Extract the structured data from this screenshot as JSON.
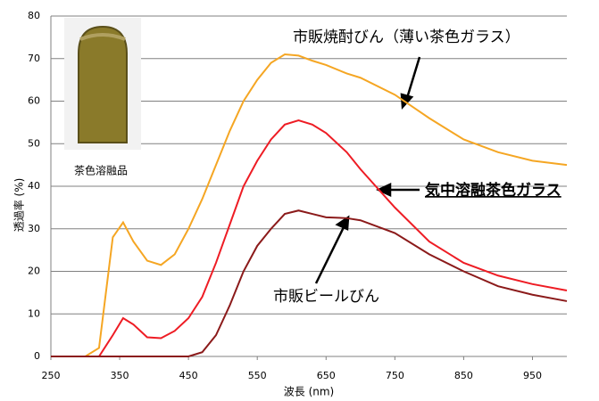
{
  "chart_data": {
    "type": "line",
    "x_label": "波長 (nm)",
    "y_label": "透過率 (%)",
    "x": [
      250,
      300,
      320,
      340,
      355,
      370,
      390,
      410,
      430,
      450,
      470,
      490,
      510,
      530,
      550,
      570,
      590,
      610,
      630,
      650,
      680,
      700,
      750,
      800,
      850,
      900,
      950,
      1000
    ],
    "series": [
      {
        "name": "市販焼酎びん（薄い茶色ガラス）",
        "color": "#f5a623",
        "values": [
          0,
          0,
          2,
          28,
          31.5,
          27,
          22.5,
          21.5,
          24,
          30,
          37,
          45,
          53,
          60,
          65,
          69,
          71,
          70.7,
          69.5,
          68.5,
          66.5,
          65.5,
          61.5,
          56,
          51,
          48,
          46,
          45
        ]
      },
      {
        "name": "気中溶融茶色ガラス",
        "color": "#ee1c24",
        "values": [
          0,
          0,
          0,
          5,
          9,
          7.5,
          4.5,
          4.3,
          6,
          9,
          14,
          22,
          31,
          40,
          46,
          51,
          54.5,
          55.5,
          54.5,
          52.5,
          48,
          44,
          35,
          27,
          22,
          19,
          17,
          15.5
        ]
      },
      {
        "name": "市販ビールびん",
        "color": "#8b1a1a",
        "values": [
          0,
          0,
          0,
          0,
          0,
          0,
          0,
          0,
          0,
          0,
          1,
          5,
          12,
          20,
          26,
          30,
          33.5,
          34.3,
          33.5,
          32.7,
          32.5,
          32,
          29,
          24,
          20,
          16.5,
          14.5,
          13
        ]
      }
    ],
    "photo_label": "茶色溶融品",
    "xlim": [
      250,
      1000
    ],
    "xticks": [
      250,
      350,
      450,
      550,
      650,
      750,
      850,
      950
    ],
    "ylim": [
      0,
      80
    ],
    "yticks": [
      0,
      10,
      20,
      30,
      40,
      50,
      60,
      70,
      80
    ],
    "grid": true
  }
}
